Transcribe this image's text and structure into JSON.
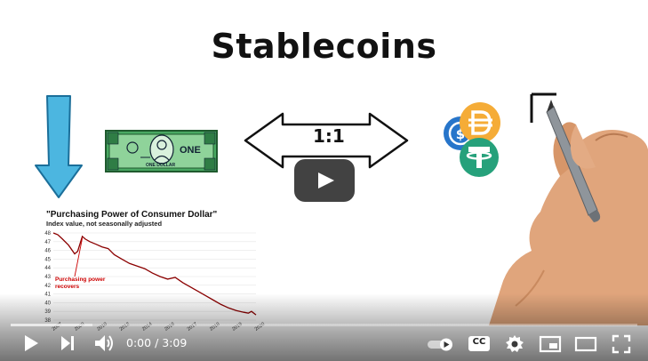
{
  "video": {
    "title": "Stablecoins",
    "banknote": {
      "text": "ONE",
      "small_text": "ONE DOLLAR"
    },
    "arrow": {
      "label": "1:1"
    },
    "coins": [
      "usdc-coin-icon",
      "dai-coin-icon",
      "tether-coin-icon"
    ],
    "chart": {
      "title": "\"Purchasing Power of Consumer Dollar\"",
      "subtitle": "Index value, not seasonally adjusted",
      "annotation_line1": "Purchasing power",
      "annotation_line2": "recovers",
      "y_ticks": [
        "48",
        "47",
        "46",
        "45",
        "44",
        "43",
        "42",
        "41",
        "40",
        "39",
        "38"
      ],
      "x_ticks": [
        "2007",
        "2008",
        "2010",
        "2012",
        "2014",
        "2016",
        "2017",
        "2018",
        "2019",
        "2020"
      ]
    }
  },
  "chart_data": {
    "type": "line",
    "title": "\"Purchasing Power of Consumer Dollar\"",
    "subtitle": "Index value, not seasonally adjusted",
    "xlabel": "",
    "ylabel": "",
    "ylim": [
      38,
      48
    ],
    "grid": true,
    "series": [
      {
        "x": [
          2007.0,
          2007.3,
          2007.6,
          2008.0,
          2008.4,
          2008.6,
          2008.9,
          2009.1,
          2009.4,
          2009.8,
          2010.2,
          2010.6,
          2011.0,
          2011.5,
          2012.0,
          2012.5,
          2013.0,
          2013.5,
          2014.0,
          2014.5,
          2015.0,
          2015.5,
          2016.0,
          2016.5,
          2017.0,
          2017.5,
          2018.0,
          2018.5,
          2019.0,
          2019.5,
          2019.8,
          2020.0,
          2020.3
        ],
        "values": [
          48.0,
          47.8,
          47.3,
          46.6,
          45.6,
          45.9,
          47.6,
          47.3,
          47.0,
          46.7,
          46.4,
          46.2,
          45.5,
          45.0,
          44.5,
          44.2,
          43.9,
          43.4,
          43.0,
          42.7,
          42.9,
          42.3,
          41.8,
          41.3,
          40.8,
          40.3,
          39.8,
          39.4,
          39.1,
          38.9,
          38.8,
          39.0,
          38.6
        ]
      }
    ]
  },
  "player": {
    "time_current": "0:00",
    "time_separator": "/",
    "time_duration": "3:09",
    "progress_fraction": 0.0,
    "buffered_fraction": 0.13,
    "autoplay_on": true,
    "buttons": {
      "play": "play-icon",
      "next": "next-icon",
      "volume": "volume-icon",
      "autoplay": "autoplay-toggle-icon",
      "captions": "CC",
      "settings": "gear-icon",
      "miniplayer": "miniplayer-icon",
      "theater": "theater-icon",
      "fullscreen": "fullscreen-icon"
    }
  },
  "colors": {
    "accent_red": "#cc0000",
    "arrow_blue": "#4cb6e0",
    "note_green": "#3f9b59",
    "usdc_blue": "#2775ca",
    "dai_orange": "#f5ac37",
    "tether_green": "#26a17b"
  }
}
